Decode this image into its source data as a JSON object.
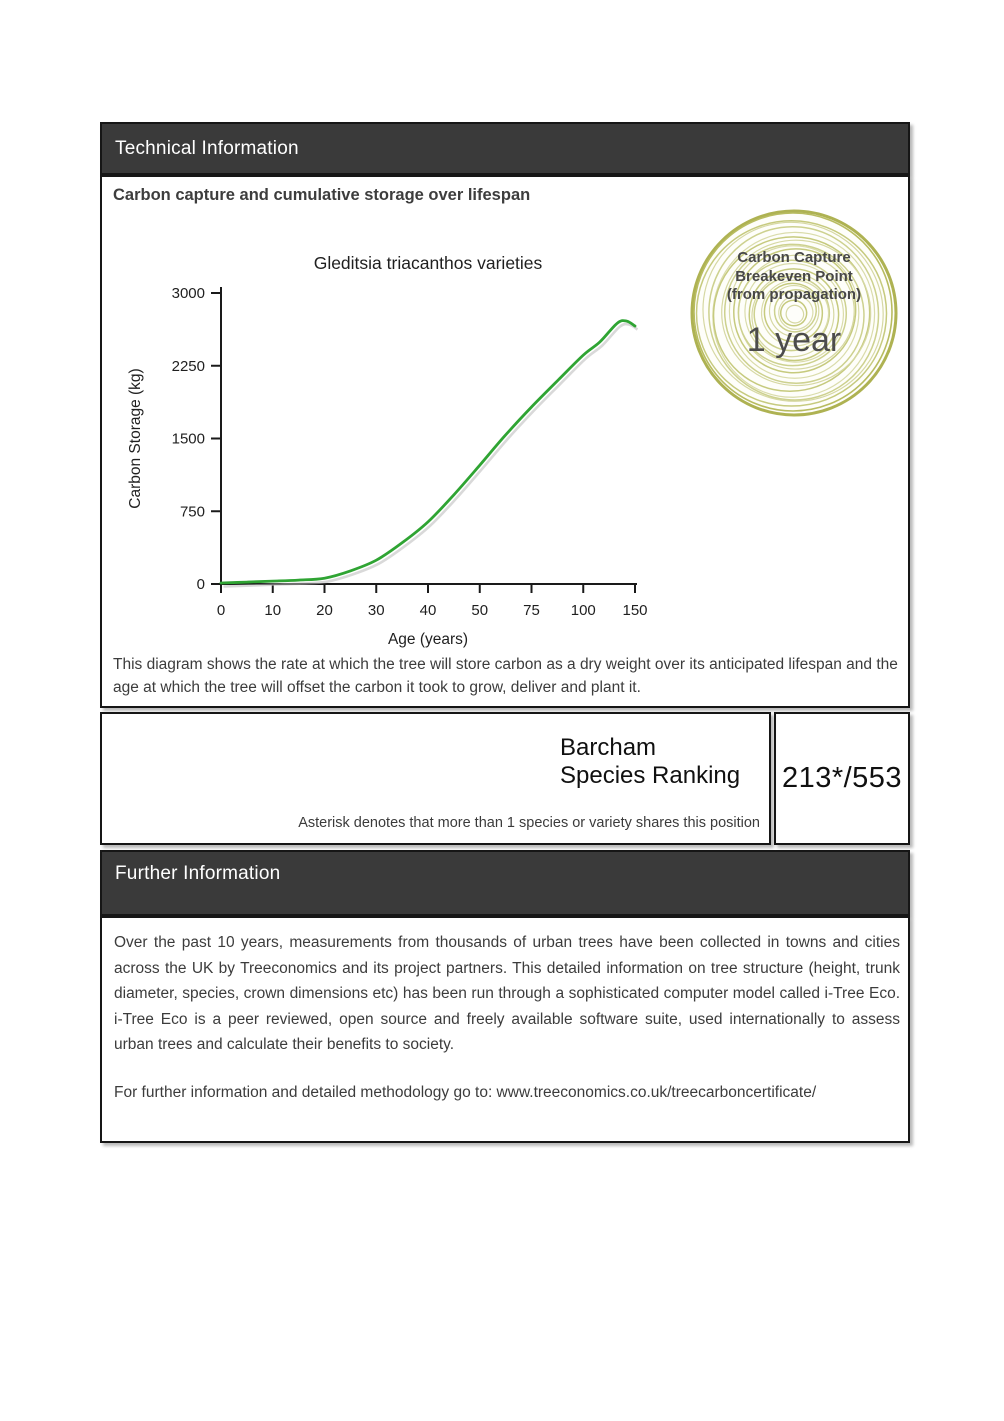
{
  "technical": {
    "header": "Technical Information",
    "section_heading": "Carbon capture and cumulative storage over lifespan",
    "description": "This diagram shows the rate at which the tree will store carbon as a dry weight over its anticipated lifespan and the age at which the tree will offset the carbon it took to grow, deliver and plant it."
  },
  "stamp": {
    "line1": "Carbon Capture",
    "line2": "Breakeven Point",
    "line3": "(from propagation)",
    "value": "1 year"
  },
  "chart_data": {
    "type": "line",
    "title": "Gleditsia triacanthos varieties",
    "xlabel": "Age (years)",
    "ylabel": "Carbon Storage (kg)",
    "x_ticks": [
      0,
      10,
      20,
      30,
      40,
      50,
      75,
      100,
      150
    ],
    "x_tick_spacing": "equal-interval-categorical",
    "y_ticks": [
      0,
      750,
      1500,
      2250,
      3000
    ],
    "ylim": [
      0,
      3000
    ],
    "grid": false,
    "legend": "none",
    "line_color": "#2fa433",
    "series": [
      {
        "name": "Gleditsia triacanthos varieties",
        "points": [
          [
            0,
            10
          ],
          [
            5,
            20
          ],
          [
            10,
            30
          ],
          [
            15,
            40
          ],
          [
            20,
            60
          ],
          [
            25,
            135
          ],
          [
            30,
            245
          ],
          [
            35,
            425
          ],
          [
            40,
            640
          ],
          [
            45,
            920
          ],
          [
            50,
            1225
          ],
          [
            62,
            1525
          ],
          [
            75,
            1825
          ],
          [
            88,
            2105
          ],
          [
            100,
            2360
          ],
          [
            116,
            2495
          ],
          [
            133,
            2690
          ],
          [
            142,
            2710
          ],
          [
            150,
            2660
          ]
        ]
      }
    ]
  },
  "ranking": {
    "title_line1": "Barcham",
    "title_line2": "Species Ranking",
    "value": "213*/553",
    "note": "Asterisk denotes that more than 1 species or variety shares this position"
  },
  "further": {
    "header": "Further Information",
    "paragraph": "Over the past 10 years, measurements from thousands of urban trees have been collected in towns and cities across the UK by Treeconomics and its project partners. This detailed information on tree structure (height, trunk diameter, species, crown dimensions etc) has been run through a sophisticated computer model called i-Tree Eco. i-Tree Eco is a peer reviewed, open source and freely available software suite, used internationally to assess urban trees and calculate their benefits to society.",
    "link_line": "For further information and detailed methodology go to: www.treeconomics.co.uk/treecarboncertificate/"
  },
  "colors": {
    "bar_background": "#3a3a3a",
    "bar_text": "#ffffff",
    "border": "#161616",
    "body_text": "#3c3c3c",
    "curve_green": "#2fa433",
    "ring_olive": "#aeb252"
  }
}
